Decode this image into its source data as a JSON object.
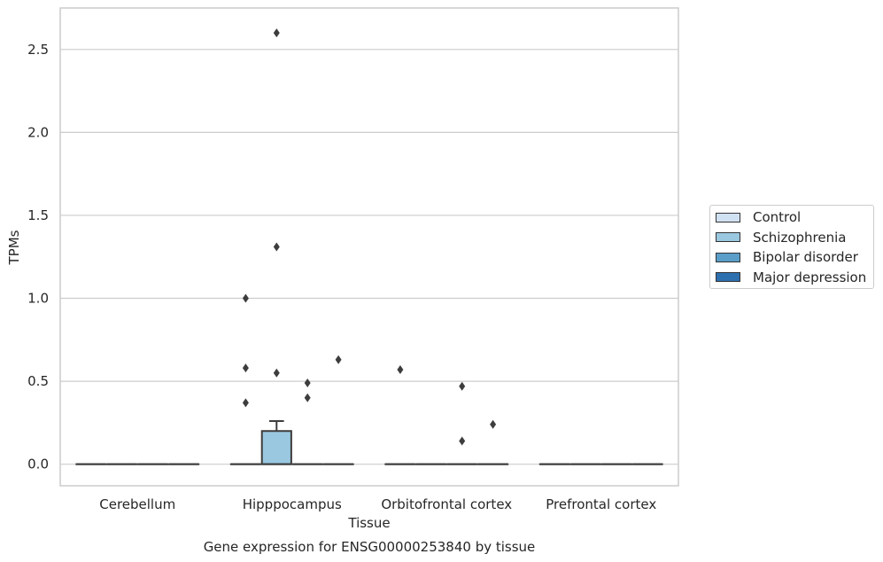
{
  "chart_data": {
    "type": "box",
    "title": "Gene expression for ENSG00000253840 by tissue",
    "xlabel": "Tissue",
    "ylabel": "TPMs",
    "ylim": [
      -0.13,
      2.75
    ],
    "yticks": [
      0.0,
      0.5,
      1.0,
      1.5,
      2.0,
      2.5
    ],
    "ytick_labels": [
      "0.0",
      "0.5",
      "1.0",
      "1.5",
      "2.0",
      "2.5"
    ],
    "grid": "horizontal",
    "legend_position": "right",
    "categories": [
      "Cerebellum",
      "Hipppocampus",
      "Orbitofrontal cortex",
      "Prefrontal cortex"
    ],
    "series": [
      {
        "name": "Control",
        "color": "#d0e1f2",
        "boxes": [
          {
            "category": "Cerebellum",
            "q1": 0.0,
            "median": 0.0,
            "q3": 0.0,
            "whisker_low": 0.0,
            "whisker_high": 0.0,
            "outliers": []
          },
          {
            "category": "Hipppocampus",
            "q1": 0.0,
            "median": 0.0,
            "q3": 0.0,
            "whisker_low": 0.0,
            "whisker_high": 0.0,
            "outliers": [
              0.37,
              0.58,
              1.0
            ]
          },
          {
            "category": "Orbitofrontal cortex",
            "q1": 0.0,
            "median": 0.0,
            "q3": 0.0,
            "whisker_low": 0.0,
            "whisker_high": 0.0,
            "outliers": [
              0.57
            ]
          },
          {
            "category": "Prefrontal cortex",
            "q1": 0.0,
            "median": 0.0,
            "q3": 0.0,
            "whisker_low": 0.0,
            "whisker_high": 0.0,
            "outliers": []
          }
        ]
      },
      {
        "name": "Schizophrenia",
        "color": "#9ac8e0",
        "boxes": [
          {
            "category": "Cerebellum",
            "q1": 0.0,
            "median": 0.0,
            "q3": 0.0,
            "whisker_low": 0.0,
            "whisker_high": 0.0,
            "outliers": []
          },
          {
            "category": "Hipppocampus",
            "q1": 0.0,
            "median": 0.0,
            "q3": 0.2,
            "whisker_low": 0.0,
            "whisker_high": 0.26,
            "outliers": [
              0.55,
              1.31,
              2.6
            ]
          },
          {
            "category": "Orbitofrontal cortex",
            "q1": 0.0,
            "median": 0.0,
            "q3": 0.0,
            "whisker_low": 0.0,
            "whisker_high": 0.0,
            "outliers": []
          },
          {
            "category": "Prefrontal cortex",
            "q1": 0.0,
            "median": 0.0,
            "q3": 0.0,
            "whisker_low": 0.0,
            "whisker_high": 0.0,
            "outliers": []
          }
        ]
      },
      {
        "name": "Bipolar disorder",
        "color": "#5a9ec9",
        "boxes": [
          {
            "category": "Cerebellum",
            "q1": 0.0,
            "median": 0.0,
            "q3": 0.0,
            "whisker_low": 0.0,
            "whisker_high": 0.0,
            "outliers": []
          },
          {
            "category": "Hipppocampus",
            "q1": 0.0,
            "median": 0.0,
            "q3": 0.0,
            "whisker_low": 0.0,
            "whisker_high": 0.0,
            "outliers": [
              0.4,
              0.49
            ]
          },
          {
            "category": "Orbitofrontal cortex",
            "q1": 0.0,
            "median": 0.0,
            "q3": 0.0,
            "whisker_low": 0.0,
            "whisker_high": 0.0,
            "outliers": [
              0.14,
              0.47
            ]
          },
          {
            "category": "Prefrontal cortex",
            "q1": 0.0,
            "median": 0.0,
            "q3": 0.0,
            "whisker_low": 0.0,
            "whisker_high": 0.0,
            "outliers": []
          }
        ]
      },
      {
        "name": "Major depression",
        "color": "#2d6faf",
        "boxes": [
          {
            "category": "Cerebellum",
            "q1": 0.0,
            "median": 0.0,
            "q3": 0.0,
            "whisker_low": 0.0,
            "whisker_high": 0.0,
            "outliers": []
          },
          {
            "category": "Hipppocampus",
            "q1": 0.0,
            "median": 0.0,
            "q3": 0.0,
            "whisker_low": 0.0,
            "whisker_high": 0.0,
            "outliers": [
              0.63
            ]
          },
          {
            "category": "Orbitofrontal cortex",
            "q1": 0.0,
            "median": 0.0,
            "q3": 0.0,
            "whisker_low": 0.0,
            "whisker_high": 0.0,
            "outliers": [
              0.24
            ]
          },
          {
            "category": "Prefrontal cortex",
            "q1": 0.0,
            "median": 0.0,
            "q3": 0.0,
            "whisker_low": 0.0,
            "whisker_high": 0.0,
            "outliers": []
          }
        ]
      }
    ]
  }
}
